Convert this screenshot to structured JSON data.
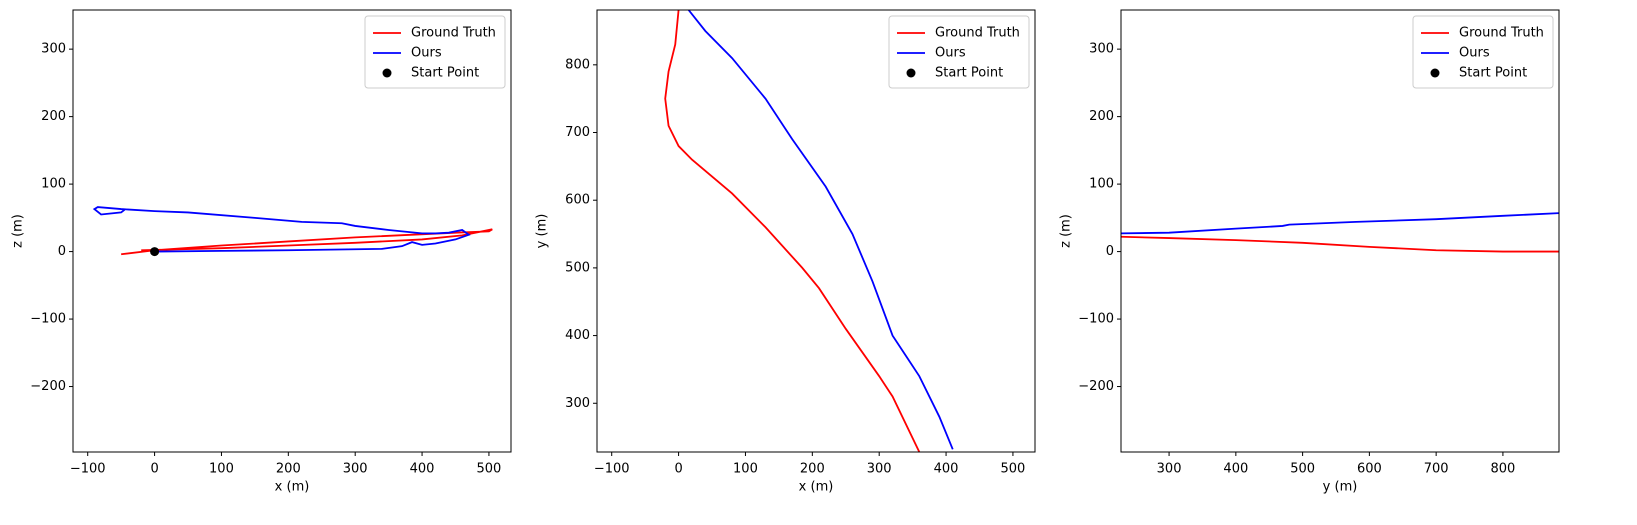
{
  "chart_data": [
    {
      "type": "line",
      "xlabel": "x (m)",
      "ylabel": "z (m)",
      "legend": "upper right",
      "xlim": [
        -122,
        533
      ],
      "ylim": [
        -297,
        358
      ],
      "xticks": [
        {
          "value": -100,
          "label": "−100"
        },
        0,
        100,
        200,
        300,
        400,
        500
      ],
      "yticks": [
        {
          "value": -200,
          "label": "−200"
        },
        {
          "value": -100,
          "label": "−100"
        },
        0,
        100,
        200,
        300
      ],
      "series": [
        {
          "name": "Ground Truth",
          "color": "#ff0000",
          "x": [
            -20,
            100,
            200,
            300,
            400,
            460,
            505,
            500,
            450,
            300,
            200,
            100,
            0,
            -50
          ],
          "values": [
            2,
            5,
            9,
            13,
            18,
            24,
            33,
            30,
            28,
            21,
            15,
            9,
            2,
            -4
          ]
        },
        {
          "name": "Ours",
          "color": "#0000ff",
          "x": [
            0,
            100,
            200,
            340,
            370,
            385,
            400,
            420,
            450,
            470,
            460,
            440,
            420,
            400,
            350,
            300,
            280,
            220,
            150,
            50,
            0,
            -50,
            -85,
            -90,
            -80,
            -50,
            -45
          ],
          "values": [
            0,
            1,
            2,
            4,
            8,
            14,
            10,
            12,
            18,
            25,
            32,
            28,
            27,
            27,
            32,
            38,
            42,
            44,
            50,
            58,
            60,
            63,
            66,
            63,
            55,
            58,
            62
          ]
        },
        {
          "name": "Start Point",
          "color": "#000000",
          "marker": true,
          "x": [
            0
          ],
          "values": [
            0
          ]
        }
      ]
    },
    {
      "type": "line",
      "xlabel": "x (m)",
      "ylabel": "y (m)",
      "legend": "upper right",
      "xlim": [
        -122,
        533
      ],
      "ylim": [
        228,
        881
      ],
      "xticks": [
        {
          "value": -100,
          "label": "−100"
        },
        0,
        100,
        200,
        300,
        400,
        500
      ],
      "yticks": [
        300,
        400,
        500,
        600,
        700,
        800
      ],
      "series": [
        {
          "name": "Ground Truth",
          "color": "#ff0000",
          "x": [
            0,
            -5,
            -15,
            -20,
            -15,
            0,
            20,
            80,
            130,
            185,
            210,
            250,
            300,
            320,
            360
          ],
          "values": [
            881,
            830,
            790,
            750,
            710,
            680,
            660,
            610,
            560,
            500,
            470,
            410,
            340,
            310,
            228
          ]
        },
        {
          "name": "Ours",
          "color": "#0000ff",
          "x": [
            15,
            40,
            80,
            130,
            170,
            220,
            260,
            290,
            320,
            340,
            360,
            390,
            410
          ],
          "values": [
            881,
            850,
            810,
            750,
            690,
            620,
            550,
            480,
            400,
            370,
            340,
            280,
            232
          ]
        },
        {
          "name": "Start Point",
          "color": "#000000",
          "marker": true,
          "x": [],
          "values": []
        }
      ]
    },
    {
      "type": "line",
      "xlabel": "y (m)",
      "ylabel": "z (m)",
      "legend": "upper right",
      "xlim": [
        228,
        884
      ],
      "ylim": [
        -297,
        358
      ],
      "xticks": [
        300,
        400,
        500,
        600,
        700,
        800
      ],
      "yticks": [
        {
          "value": -200,
          "label": "−200"
        },
        {
          "value": -100,
          "label": "−100"
        },
        0,
        100,
        200,
        300
      ],
      "series": [
        {
          "name": "Ground Truth",
          "color": "#ff0000",
          "x": [
            228,
            300,
            400,
            500,
            600,
            700,
            800,
            884
          ],
          "values": [
            22,
            20,
            17,
            13,
            7,
            2,
            0,
            0
          ]
        },
        {
          "name": "Ours",
          "color": "#0000ff",
          "x": [
            228,
            300,
            400,
            470,
            480,
            580,
            700,
            800,
            884
          ],
          "values": [
            27,
            28,
            34,
            38,
            40,
            44,
            48,
            53,
            57
          ]
        },
        {
          "name": "Start Point",
          "color": "#000000",
          "marker": true,
          "x": [],
          "values": []
        }
      ]
    }
  ]
}
